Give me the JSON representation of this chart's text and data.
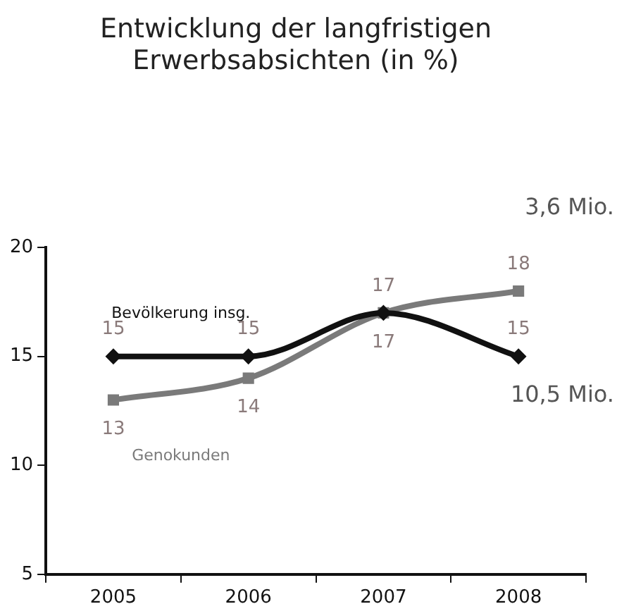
{
  "chart_data": {
    "type": "line",
    "title": "Entwicklung der langfristigen\nErwerbsabsichten (in %)",
    "categories": [
      "2005",
      "2006",
      "2007",
      "2008"
    ],
    "series": [
      {
        "name": "Bevölkerung insg.",
        "color": "#111111",
        "values": [
          15,
          15,
          17,
          15
        ],
        "marker": "diamond"
      },
      {
        "name": "Genokunden",
        "color": "#7a7a7a",
        "values": [
          13,
          14,
          17,
          18
        ],
        "marker": "square"
      }
    ],
    "ylim": [
      5,
      20
    ],
    "yticks": [
      5,
      10,
      15,
      20
    ],
    "grid": false,
    "legend": false,
    "data_labels": true,
    "annotations": [
      "3,6 Mio.",
      "10,5 Mio."
    ]
  }
}
